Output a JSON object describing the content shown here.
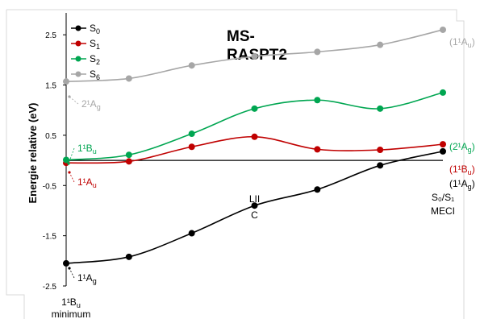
{
  "chart_data": {
    "type": "line",
    "title": "MS-RASPT2",
    "title_lines": [
      "MS-",
      "RASPT2"
    ],
    "ylabel": "Energie relative (eV)",
    "xlabel": "",
    "ylim": [
      -2.5,
      3.0
    ],
    "yticks": [
      -2.5,
      -1.5,
      -0.5,
      0.5,
      1.5,
      2.5
    ],
    "ytick_labels": [
      "-2.5",
      "-1.5",
      "-0.5",
      "0.5",
      "1.5",
      "2.5"
    ],
    "grid": false,
    "legend_position": "top-left",
    "x": [
      0,
      1,
      2,
      3,
      4,
      5,
      6
    ],
    "category_labels": [
      {
        "x": 0,
        "lines": [
          "1¹B",
          "u",
          "minimum"
        ]
      },
      {
        "x": 3,
        "lines": [
          "LII",
          "C"
        ]
      },
      {
        "x": 6,
        "lines": [
          "S₀/S₁",
          "MECI"
        ]
      }
    ],
    "series": [
      {
        "name": "S0",
        "sub": "0",
        "color": "#000000",
        "values": [
          -2.05,
          -1.92,
          -1.45,
          -0.9,
          -0.58,
          -0.1,
          0.18
        ]
      },
      {
        "name": "S1",
        "sub": "1",
        "color": "#c00000",
        "values": [
          -0.05,
          -0.02,
          0.27,
          0.47,
          0.22,
          0.21,
          0.32
        ]
      },
      {
        "name": "S2",
        "sub": "2",
        "color": "#00a651",
        "values": [
          0.01,
          0.11,
          0.53,
          1.03,
          1.2,
          1.03,
          1.35
        ]
      },
      {
        "name": "S6",
        "sub": "6",
        "color": "#a6a6a6",
        "values": [
          1.57,
          1.63,
          1.89,
          2.07,
          2.16,
          2.3,
          2.6
        ]
      }
    ],
    "annotations": [
      {
        "id": "s0-start",
        "series": "S0",
        "x": 0,
        "label": "1¹A",
        "sub": "g",
        "paren": false
      },
      {
        "id": "s1-start",
        "series": "S1",
        "x": 0,
        "label": "1¹A",
        "sub": "u",
        "paren": false
      },
      {
        "id": "s2-start",
        "series": "S2",
        "x": 0,
        "label": "1¹B",
        "sub": "u",
        "paren": false
      },
      {
        "id": "s6-start",
        "series": "S6",
        "x": 0,
        "label": "2¹A",
        "sub": "g",
        "paren": false
      },
      {
        "id": "s0-end",
        "series": "S0",
        "x": 6,
        "label": "(1¹A",
        "sub": "g",
        "paren": true
      },
      {
        "id": "s1-end",
        "series": "S1",
        "x": 6,
        "label": "(1¹B",
        "sub": "u",
        "paren": true
      },
      {
        "id": "s2-end",
        "series": "S2",
        "x": 6,
        "label": "(2¹A",
        "sub": "g",
        "paren": true
      },
      {
        "id": "s6-end",
        "series": "S6",
        "x": 6,
        "label": "(1¹A",
        "sub": "u",
        "paren": true
      }
    ]
  }
}
